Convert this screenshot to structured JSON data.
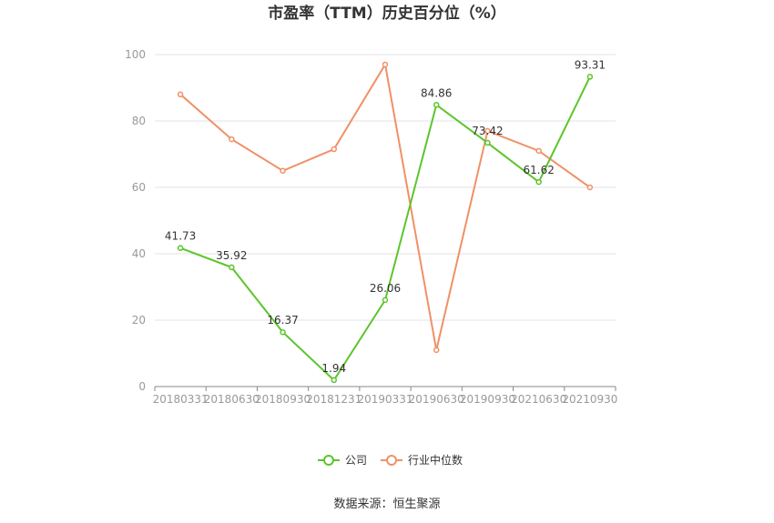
{
  "chart_data": {
    "type": "line",
    "title": "市盈率（TTM）历史百分位（%）",
    "categories": [
      "20180331",
      "20180630",
      "20180930",
      "20181231",
      "20190331",
      "20190630",
      "20190930",
      "20210630",
      "20210930"
    ],
    "ylim": [
      0,
      100
    ],
    "yticks": [
      "0",
      "20",
      "40",
      "60",
      "80",
      "100"
    ],
    "grid": true,
    "legend_position": "bottom",
    "series": [
      {
        "name": "公司",
        "color": "#5cc52b",
        "values": [
          41.73,
          35.92,
          16.37,
          1.94,
          26.06,
          84.86,
          73.42,
          61.62,
          93.31
        ],
        "labels": [
          "41.73",
          "35.92",
          "16.37",
          "1.94",
          "26.06",
          "84.86",
          "73.42",
          "61.62",
          "93.31"
        ]
      },
      {
        "name": "行业中位数",
        "color": "#f09066",
        "values": [
          88,
          74.5,
          65,
          71.5,
          97,
          11,
          77,
          71,
          60
        ]
      }
    ]
  },
  "source": "数据来源：恒生聚源"
}
